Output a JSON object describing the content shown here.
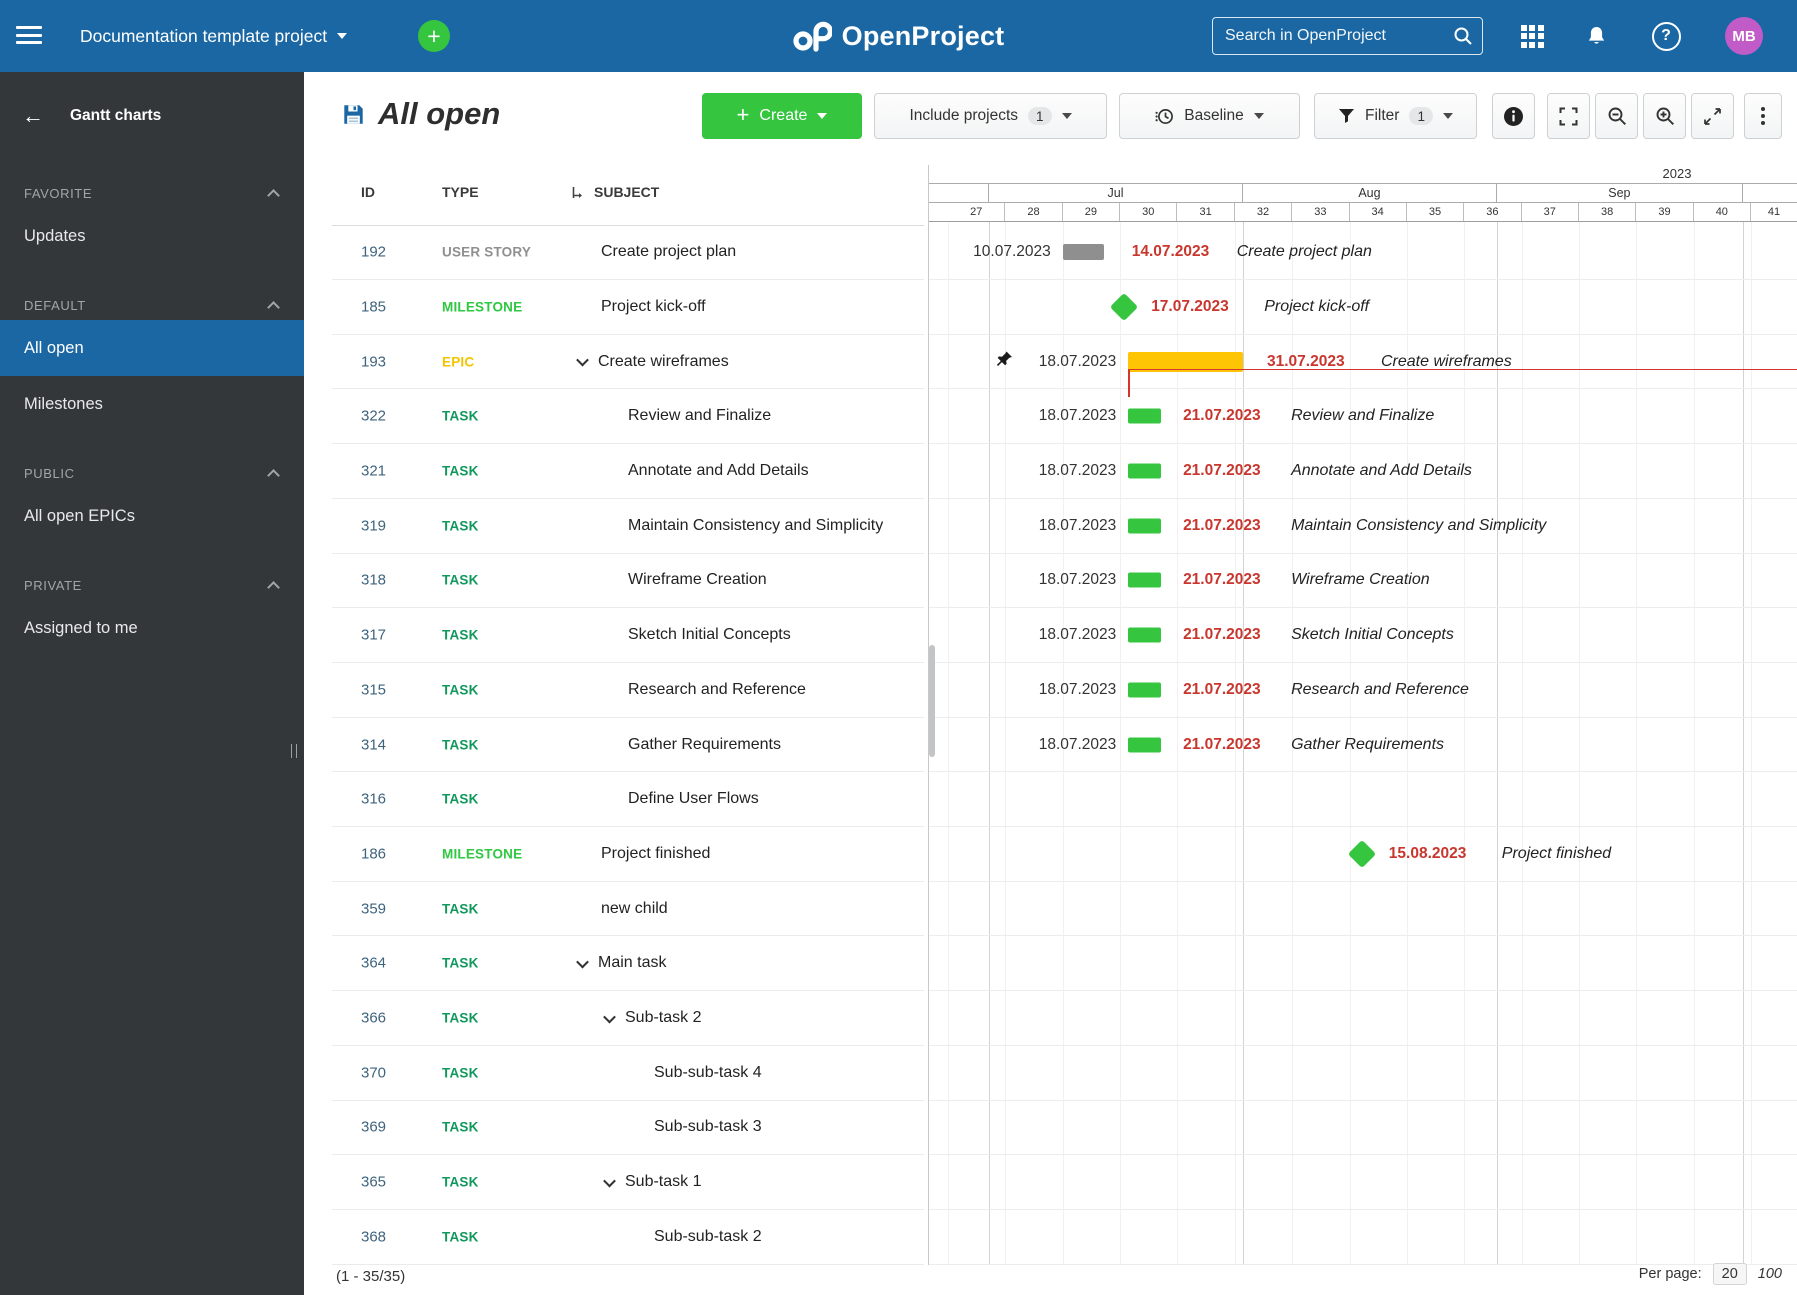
{
  "colors": {
    "header_blue": "#1A67A3",
    "sidebar_bg": "#333739",
    "create_green": "#35C53F",
    "avatar_purple": "#C05BC7",
    "link_blue": "#3E637D",
    "date_red": "#C8362D",
    "conflict_red": "#D6352B",
    "type_colors": {
      "user_story": "#8F8F8F",
      "milestone": "#2FC841",
      "epic": "#F2C500",
      "task": "#11985C"
    },
    "bar_colors": {
      "gray": "#8F8F8F",
      "amber": "#FEC504",
      "green": "#35C53F"
    }
  },
  "header": {
    "project": "Documentation template project",
    "logo_text": "OpenProject",
    "search_placeholder": "Search in OpenProject",
    "avatar": "MB"
  },
  "sidebar": {
    "title": "Gantt charts",
    "sections": [
      {
        "label": "FAVORITE",
        "items": [
          {
            "label": "Updates",
            "selected": false
          }
        ]
      },
      {
        "label": "DEFAULT",
        "items": [
          {
            "label": "All open",
            "selected": true
          },
          {
            "label": "Milestones",
            "selected": false
          }
        ]
      },
      {
        "label": "PUBLIC",
        "items": [
          {
            "label": "All open EPICs",
            "selected": false
          }
        ]
      },
      {
        "label": "PRIVATE",
        "items": [
          {
            "label": "Assigned to me",
            "selected": false
          }
        ]
      }
    ]
  },
  "toolbar": {
    "title": "All open",
    "create_label": "Create",
    "include_projects_label": "Include projects",
    "include_projects_count": "1",
    "baseline_label": "Baseline",
    "filter_label": "Filter",
    "filter_count": "1"
  },
  "table": {
    "columns": {
      "id": "ID",
      "type": "TYPE",
      "subject": "SUBJECT"
    },
    "rows": [
      {
        "id": "192",
        "type": "USER STORY",
        "type_key": "user_story",
        "subject": "Create project plan",
        "indent": 0,
        "chevron": false,
        "gantt": {
          "kind": "bar",
          "color": "gray",
          "start": "2023-07-10",
          "end": "2023-07-14",
          "start_label": "10.07.2023",
          "end_label": "14.07.2023"
        }
      },
      {
        "id": "185",
        "type": "MILESTONE",
        "type_key": "milestone",
        "subject": "Project kick-off",
        "indent": 0,
        "chevron": false,
        "gantt": {
          "kind": "milestone",
          "date": "2023-07-17",
          "date_label": "17.07.2023"
        }
      },
      {
        "id": "193",
        "type": "EPIC",
        "type_key": "epic",
        "subject": "Create wireframes",
        "indent": 0,
        "chevron": true,
        "gantt": {
          "kind": "bar",
          "color": "amber",
          "start": "2023-07-18",
          "end": "2023-07-31",
          "start_label": "18.07.2023",
          "end_label": "31.07.2023",
          "pinned": true,
          "conflict": true
        }
      },
      {
        "id": "322",
        "type": "TASK",
        "type_key": "task",
        "subject": "Review and Finalize",
        "indent": 1,
        "chevron": false,
        "gantt": {
          "kind": "bar",
          "color": "green",
          "start": "2023-07-18",
          "end": "2023-07-21",
          "start_label": "18.07.2023",
          "end_label": "21.07.2023"
        }
      },
      {
        "id": "321",
        "type": "TASK",
        "type_key": "task",
        "subject": "Annotate and Add Details",
        "indent": 1,
        "chevron": false,
        "gantt": {
          "kind": "bar",
          "color": "green",
          "start": "2023-07-18",
          "end": "2023-07-21",
          "start_label": "18.07.2023",
          "end_label": "21.07.2023"
        }
      },
      {
        "id": "319",
        "type": "TASK",
        "type_key": "task",
        "subject": "Maintain Consistency and Simplicity",
        "indent": 1,
        "chevron": false,
        "gantt": {
          "kind": "bar",
          "color": "green",
          "start": "2023-07-18",
          "end": "2023-07-21",
          "start_label": "18.07.2023",
          "end_label": "21.07.2023"
        }
      },
      {
        "id": "318",
        "type": "TASK",
        "type_key": "task",
        "subject": "Wireframe Creation",
        "indent": 1,
        "chevron": false,
        "gantt": {
          "kind": "bar",
          "color": "green",
          "start": "2023-07-18",
          "end": "2023-07-21",
          "start_label": "18.07.2023",
          "end_label": "21.07.2023"
        }
      },
      {
        "id": "317",
        "type": "TASK",
        "type_key": "task",
        "subject": "Sketch Initial Concepts",
        "indent": 1,
        "chevron": false,
        "gantt": {
          "kind": "bar",
          "color": "green",
          "start": "2023-07-18",
          "end": "2023-07-21",
          "start_label": "18.07.2023",
          "end_label": "21.07.2023"
        }
      },
      {
        "id": "315",
        "type": "TASK",
        "type_key": "task",
        "subject": "Research and Reference",
        "indent": 1,
        "chevron": false,
        "gantt": {
          "kind": "bar",
          "color": "green",
          "start": "2023-07-18",
          "end": "2023-07-21",
          "start_label": "18.07.2023",
          "end_label": "21.07.2023"
        }
      },
      {
        "id": "314",
        "type": "TASK",
        "type_key": "task",
        "subject": "Gather Requirements",
        "indent": 1,
        "chevron": false,
        "gantt": {
          "kind": "bar",
          "color": "green",
          "start": "2023-07-18",
          "end": "2023-07-21",
          "start_label": "18.07.2023",
          "end_label": "21.07.2023"
        }
      },
      {
        "id": "316",
        "type": "TASK",
        "type_key": "task",
        "subject": "Define User Flows",
        "indent": 1,
        "chevron": false,
        "gantt": {
          "kind": "none"
        }
      },
      {
        "id": "186",
        "type": "MILESTONE",
        "type_key": "milestone",
        "subject": "Project finished",
        "indent": 0,
        "chevron": false,
        "gantt": {
          "kind": "milestone",
          "date": "2023-08-15",
          "date_label": "15.08.2023"
        }
      },
      {
        "id": "359",
        "type": "TASK",
        "type_key": "task",
        "subject": "new child",
        "indent": 0,
        "chevron": false,
        "gantt": {
          "kind": "none"
        }
      },
      {
        "id": "364",
        "type": "TASK",
        "type_key": "task",
        "subject": "Main task",
        "indent": 0,
        "chevron": true,
        "gantt": {
          "kind": "none"
        }
      },
      {
        "id": "366",
        "type": "TASK",
        "type_key": "task",
        "subject": "Sub-task 2",
        "indent": 1,
        "chevron": true,
        "gantt": {
          "kind": "none"
        }
      },
      {
        "id": "370",
        "type": "TASK",
        "type_key": "task",
        "subject": "Sub-sub-task 4",
        "indent": 2,
        "chevron": false,
        "gantt": {
          "kind": "none"
        }
      },
      {
        "id": "369",
        "type": "TASK",
        "type_key": "task",
        "subject": "Sub-sub-task 3",
        "indent": 2,
        "chevron": false,
        "gantt": {
          "kind": "none"
        }
      },
      {
        "id": "365",
        "type": "TASK",
        "type_key": "task",
        "subject": "Sub-task 1",
        "indent": 1,
        "chevron": true,
        "gantt": {
          "kind": "none"
        }
      },
      {
        "id": "368",
        "type": "TASK",
        "type_key": "task",
        "subject": "Sub-sub-task 2",
        "indent": 2,
        "chevron": false,
        "gantt": {
          "kind": "none"
        }
      }
    ]
  },
  "gantt": {
    "year": "2023",
    "months": [
      {
        "label": "Jul",
        "days": 31
      },
      {
        "label": "Aug",
        "days": 31
      },
      {
        "label": "Sep",
        "days": 30
      }
    ],
    "weeks": [
      "27",
      "28",
      "29",
      "30",
      "31",
      "32",
      "33",
      "34",
      "35",
      "36",
      "37",
      "38",
      "39",
      "40",
      "41"
    ]
  },
  "footer": {
    "range_label": "(1 - 35/35)",
    "per_page_label": "Per page:",
    "per_page_selected": "20",
    "per_page_alt": "100"
  }
}
